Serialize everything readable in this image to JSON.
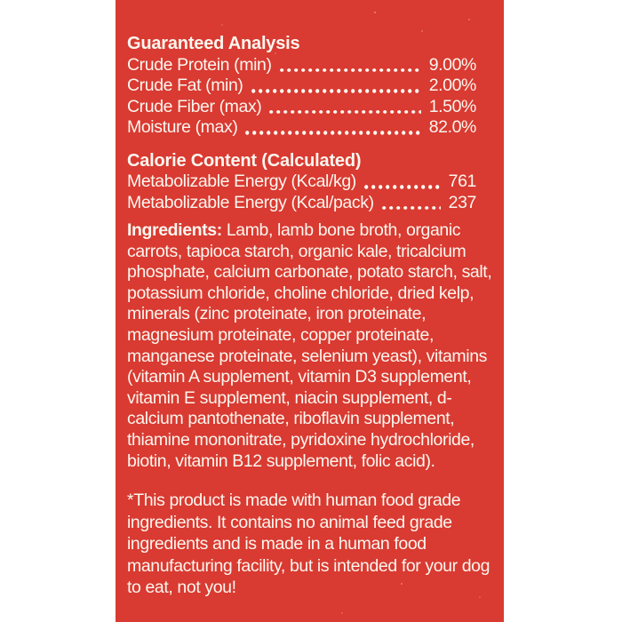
{
  "colors": {
    "label-bg": "#d93a31",
    "ink": "#fbf6ef",
    "page-bg": "#ffffff"
  },
  "label": {
    "guaranteed_analysis": {
      "heading": "Guaranteed Analysis",
      "rows": [
        {
          "label": "Crude Protein (min)",
          "value": "9.00%"
        },
        {
          "label": "Crude Fat (min)",
          "value": "2.00%"
        },
        {
          "label": "Crude Fiber (max)",
          "value": "1.50%"
        },
        {
          "label": "Moisture (max)",
          "value": "82.0%"
        }
      ]
    },
    "calorie_content": {
      "heading": "Calorie Content (Calculated)",
      "rows": [
        {
          "label": "Metabolizable Energy (Kcal/kg)",
          "value": "761"
        },
        {
          "label": "Metabolizable Energy (Kcal/pack)",
          "value": "237"
        }
      ]
    },
    "ingredients": {
      "heading": "Ingredients:",
      "text": "Lamb, lamb bone broth, organic carrots, tapioca starch, organic kale, tricalcium phosphate, calcium carbonate, potato starch, salt, potassium chloride, choline chloride, dried kelp, minerals (zinc proteinate, iron proteinate, magnesium proteinate, copper proteinate, manganese proteinate, selenium yeast), vitamins (vitamin A supplement, vitamin D3 supplement, vitamin E supplement, niacin supplement, d-calcium pantothenate, riboflavin supplement, thiamine mononitrate, pyridoxine hydrochloride, biotin, vitamin B12 supplement, folic acid)."
    },
    "footnote": "*This product is made with human food grade ingredients. It contains no animal feed grade ingredients and is made in a human food manufacturing facility, but is intended for your dog to eat, not you!"
  }
}
